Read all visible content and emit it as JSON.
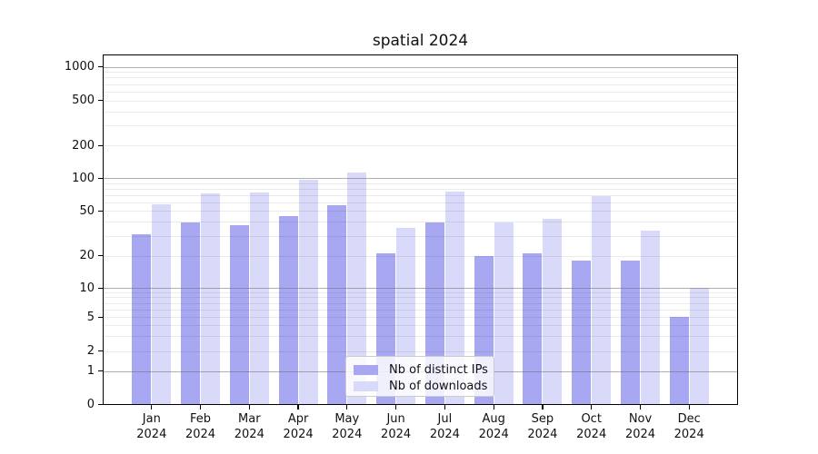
{
  "title": "spatial 2024",
  "chart_data": {
    "type": "bar",
    "categories": [
      "Jan 2024",
      "Feb 2024",
      "Mar 2024",
      "Apr 2024",
      "May 2024",
      "Jun 2024",
      "Jul 2024",
      "Aug 2024",
      "Sep 2024",
      "Oct 2024",
      "Nov 2024",
      "Dec 2024"
    ],
    "category_line1": [
      "Jan",
      "Feb",
      "Mar",
      "Apr",
      "May",
      "Jun",
      "Jul",
      "Aug",
      "Sep",
      "Oct",
      "Nov",
      "Dec"
    ],
    "category_line2": "2024",
    "series": [
      {
        "name": "Nb of distinct IPs",
        "color": "#a8a8f2",
        "values": [
          31,
          39,
          37,
          45,
          56,
          21,
          39,
          20,
          21,
          18,
          18,
          5
        ]
      },
      {
        "name": "Nb of downloads",
        "color": "#d9d9f9",
        "values": [
          57,
          72,
          74,
          96,
          113,
          35,
          75,
          39,
          42,
          68,
          33,
          10
        ]
      }
    ],
    "title": "spatial 2024",
    "xlabel": "",
    "ylabel": "",
    "yscale": "symlog-like",
    "ytick_values": [
      0,
      1,
      2,
      5,
      10,
      20,
      50,
      100,
      200,
      500,
      1000
    ],
    "ytick_labels": [
      "0",
      "1",
      "2",
      "5",
      "10",
      "20",
      "50",
      "100",
      "200",
      "500",
      "1000"
    ],
    "ylim": [
      0,
      1400
    ],
    "grid": true,
    "legend_position": "lower center",
    "legend_labels": [
      "Nb of distinct IPs",
      "Nb of downloads"
    ]
  },
  "colors": {
    "bar_distinct_ips": "#a8a8f2",
    "bar_downloads": "#d9d9f9",
    "grid_major": "#6e6e6e",
    "grid_minor": "#e8e8e8",
    "axis": "#000000",
    "background": "#ffffff"
  }
}
